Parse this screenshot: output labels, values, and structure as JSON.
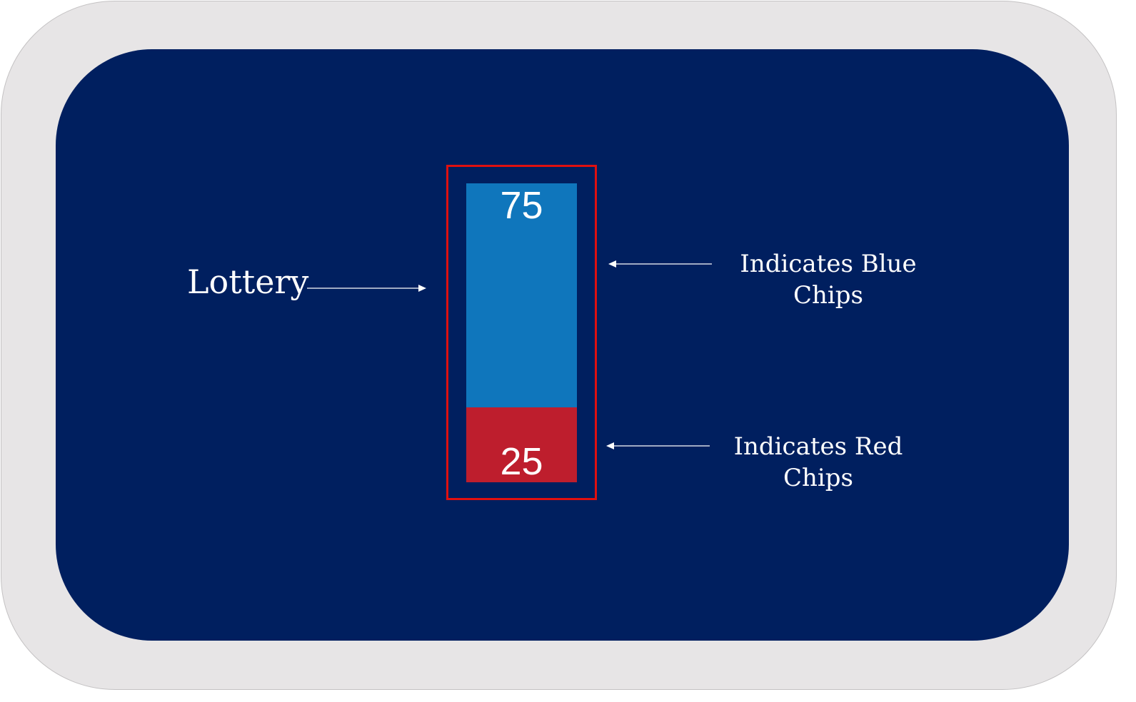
{
  "colors": {
    "frame": "#e7e5e6",
    "panel": "#001f5f",
    "blue_chips": "#0f76bc",
    "red_chips": "#be1e2d",
    "highlight_box": "#e01010",
    "text": "#ffffff"
  },
  "lottery": {
    "label": "Lottery",
    "blue_chips": 75,
    "red_chips": 25
  },
  "annotations": {
    "blue": [
      "Indicates Blue",
      "Chips"
    ],
    "red": [
      "Indicates Red",
      "Chips"
    ]
  }
}
